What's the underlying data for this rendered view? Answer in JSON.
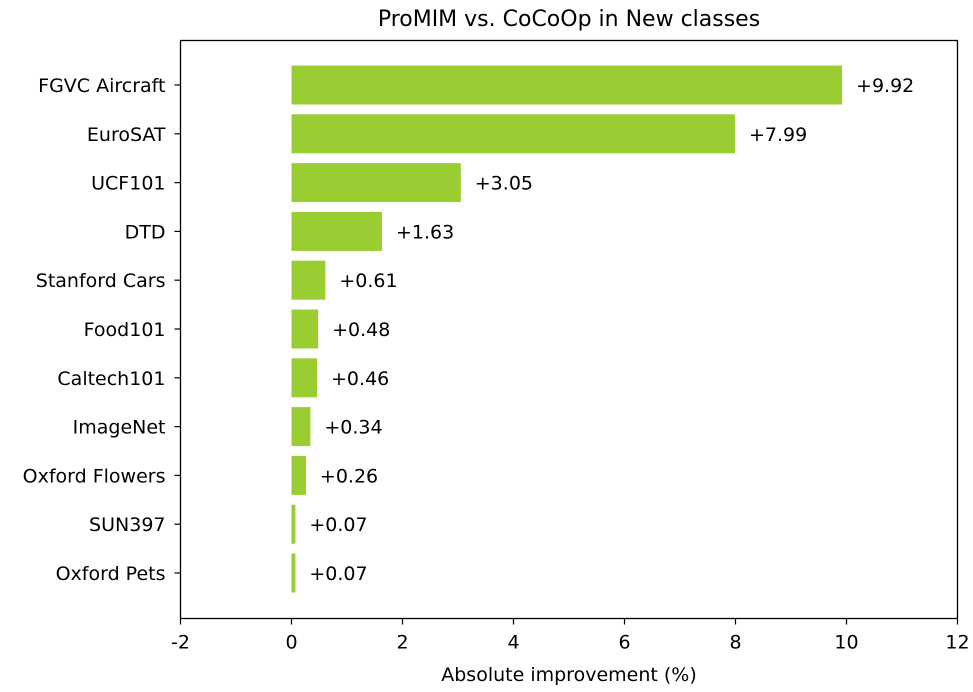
{
  "chart_data": {
    "type": "bar",
    "orientation": "horizontal",
    "title": "ProMIM vs. CoCoOp in New classes",
    "xlabel": "Absolute improvement (%)",
    "ylabel": "",
    "xlim": [
      -2,
      12
    ],
    "xticks": [
      -2,
      0,
      2,
      4,
      6,
      8,
      10,
      12
    ],
    "xtick_labels": [
      "-2",
      "0",
      "2",
      "4",
      "6",
      "8",
      "10",
      "12"
    ],
    "grid": false,
    "bar_color": "#9acd32",
    "categories": [
      "FGVC Aircraft",
      "EuroSAT",
      "UCF101",
      "DTD",
      "Stanford Cars",
      "Food101",
      "Caltech101",
      "ImageNet",
      "Oxford Flowers",
      "SUN397",
      "Oxford Pets"
    ],
    "values": [
      9.92,
      7.99,
      3.05,
      1.63,
      0.61,
      0.48,
      0.46,
      0.34,
      0.26,
      0.07,
      0.07
    ],
    "data_labels": [
      "+9.92",
      "+7.99",
      "+3.05",
      "+1.63",
      "+0.61",
      "+0.48",
      "+0.46",
      "+0.34",
      "+0.26",
      "+0.07",
      "+0.07"
    ]
  }
}
